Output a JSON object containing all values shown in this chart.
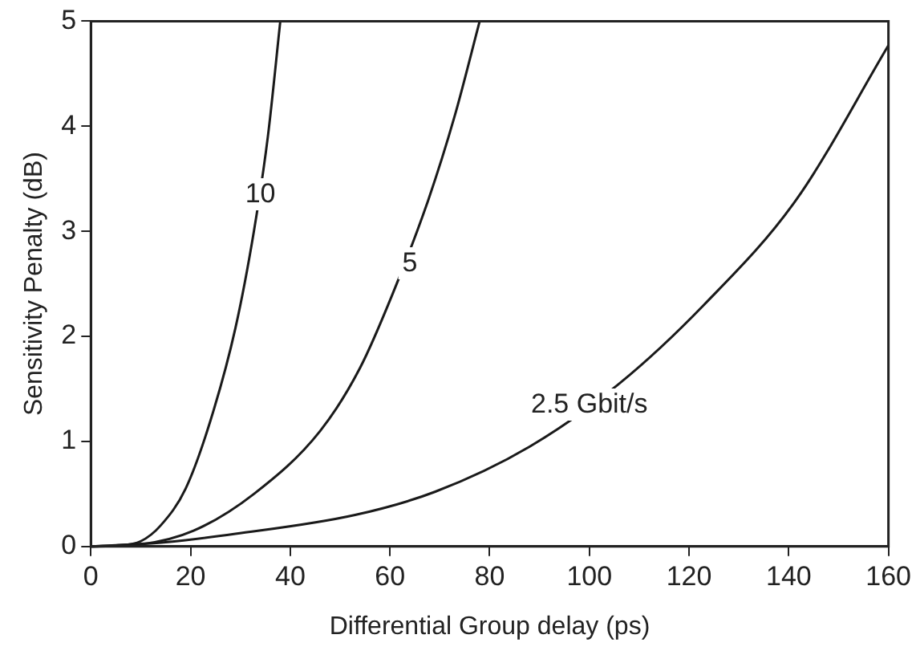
{
  "chart_data": {
    "type": "line",
    "xlabel": "Differential Group delay (ps)",
    "ylabel": "Sensitivity Penalty (dB)",
    "xlim": [
      0,
      160
    ],
    "ylim": [
      0,
      5
    ],
    "xticks": [
      0,
      20,
      40,
      60,
      80,
      100,
      120,
      140,
      160
    ],
    "yticks": [
      0,
      1,
      2,
      3,
      4,
      5
    ],
    "grid": false,
    "legend": false,
    "marker": "none",
    "line_style": "solid",
    "series": [
      {
        "color": "#1a1a1a",
        "x": [
          0,
          5,
          10,
          14,
          19,
          24,
          29,
          32.7,
          35.5,
          38
        ],
        "values": [
          0,
          0.01,
          0.05,
          0.2,
          0.55,
          1.2,
          2.08,
          3.0,
          3.9,
          5
        ]
      },
      {
        "color": "#1a1a1a",
        "x": [
          0,
          10,
          20.6,
          32.7,
          46,
          54,
          60.5,
          67.7,
          73,
          78
        ],
        "values": [
          0,
          0.02,
          0.15,
          0.5,
          1.1,
          1.7,
          2.4,
          3.3,
          4.1,
          5
        ]
      },
      {
        "color": "#1a1a1a",
        "x": [
          0,
          15,
          29,
          53,
          69,
          88,
          106,
          123,
          141.5,
          160
        ],
        "values": [
          0,
          0.04,
          0.12,
          0.3,
          0.52,
          0.95,
          1.55,
          2.3,
          3.3,
          4.77
        ]
      }
    ],
    "annotations": [
      {
        "text": "10",
        "x": 34,
        "y": 3.35
      },
      {
        "text": "5",
        "x": 64,
        "y": 2.7
      },
      {
        "text": "2.5 Gbit/s",
        "x": 100,
        "y": 1.35
      }
    ]
  }
}
